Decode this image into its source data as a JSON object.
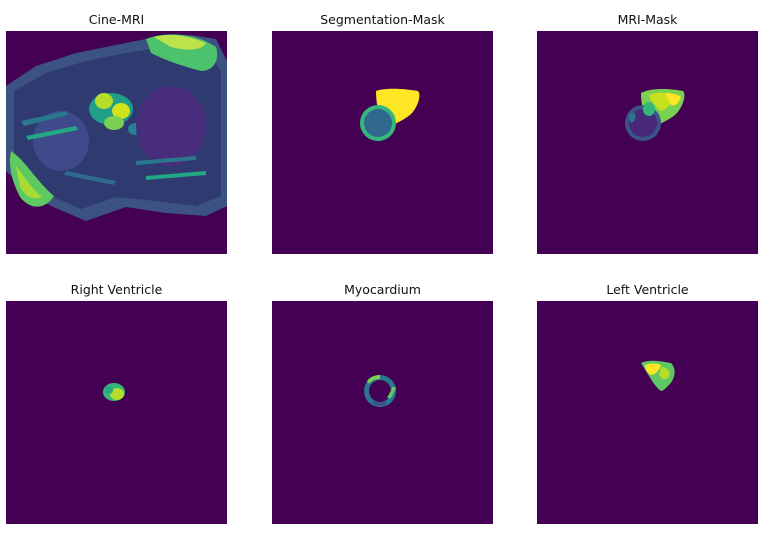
{
  "panels": [
    {
      "title": "Cine-MRI",
      "image": "cine-mri-slice"
    },
    {
      "title": "Segmentation-Mask",
      "image": "segmentation-mask"
    },
    {
      "title": "MRI-Mask",
      "image": "mri-masked-heart"
    },
    {
      "title": "Right Ventricle",
      "image": "right-ventricle-region"
    },
    {
      "title": "Myocardium",
      "image": "myocardium-ring"
    },
    {
      "title": "Left Ventricle",
      "image": "left-ventricle-region"
    }
  ],
  "colors": {
    "background": "#440154",
    "mask_yellow": "#fde725",
    "mask_teal": "#21918c",
    "mask_green": "#35b779",
    "mask_blue": "#31688e"
  }
}
